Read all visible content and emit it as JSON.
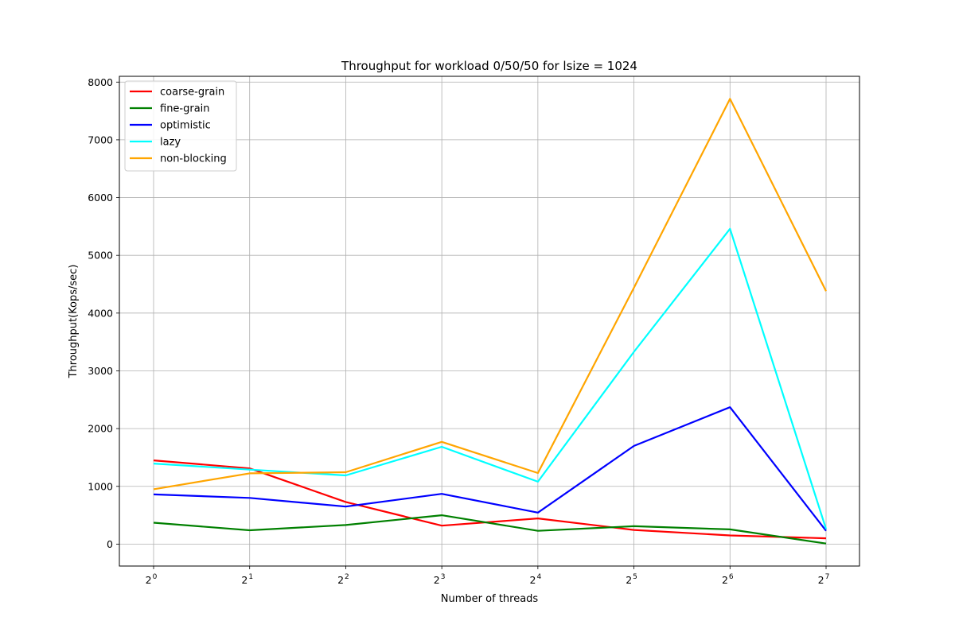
{
  "chart_data": {
    "type": "line",
    "title": "Throughput for workload 0/50/50 for lsize = 1024",
    "xlabel": "Number of threads",
    "ylabel": "Throughput(Kops/sec)",
    "x": [
      1,
      2,
      4,
      8,
      16,
      32,
      64,
      128
    ],
    "x_tick_base": "2",
    "x_tick_exponents": [
      "0",
      "1",
      "2",
      "3",
      "4",
      "5",
      "6",
      "7"
    ],
    "xscale": "log2",
    "ylim": [
      -380,
      8100
    ],
    "y_ticks": [
      0,
      1000,
      2000,
      3000,
      4000,
      5000,
      6000,
      7000,
      8000
    ],
    "grid": true,
    "legend_position": "upper-left",
    "series": [
      {
        "name": "coarse-grain",
        "color": "#ff0000",
        "values": [
          1450,
          1310,
          730,
          320,
          445,
          245,
          150,
          100
        ]
      },
      {
        "name": "fine-grain",
        "color": "#008000",
        "values": [
          370,
          240,
          330,
          500,
          230,
          310,
          255,
          10
        ]
      },
      {
        "name": "optimistic",
        "color": "#0000ff",
        "values": [
          860,
          800,
          650,
          870,
          545,
          1700,
          2370,
          230
        ]
      },
      {
        "name": "lazy",
        "color": "#00ffff",
        "values": [
          1395,
          1290,
          1190,
          1685,
          1080,
          3330,
          5460,
          260
        ]
      },
      {
        "name": "non-blocking",
        "color": "#ffa500",
        "values": [
          950,
          1225,
          1245,
          1770,
          1230,
          4440,
          7710,
          4380
        ]
      }
    ]
  }
}
